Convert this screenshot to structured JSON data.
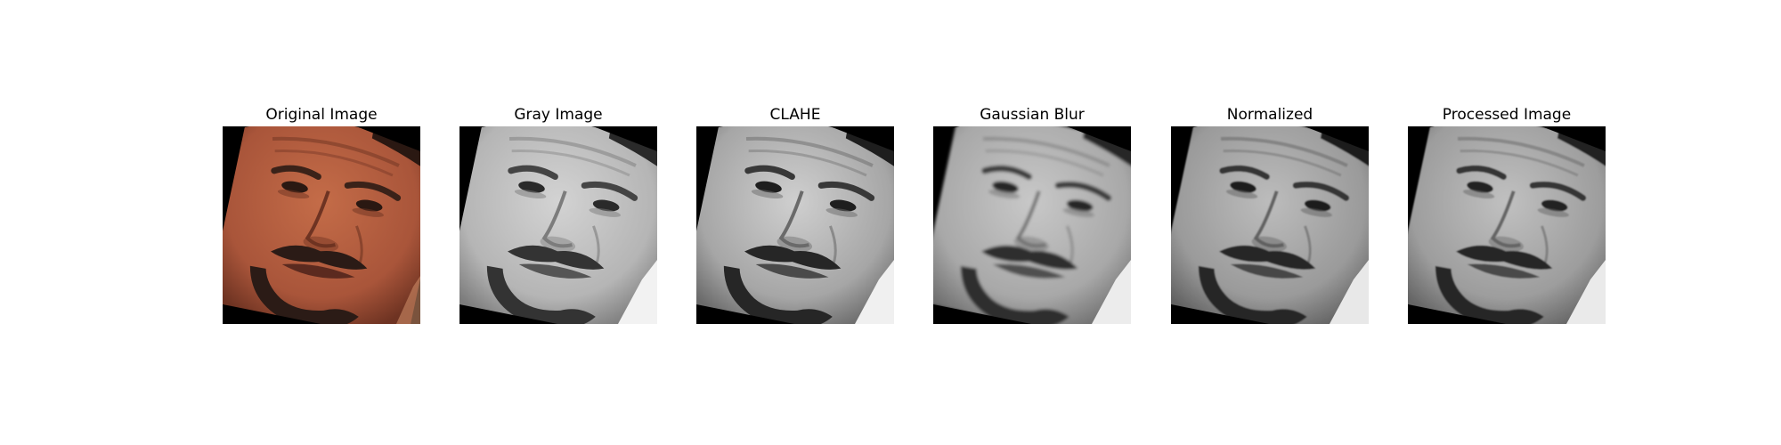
{
  "panels": [
    {
      "title": "Original Image",
      "mode": "color",
      "face_icon": "face-photo"
    },
    {
      "title": "Gray Image",
      "mode": "gray",
      "face_icon": "face-photo"
    },
    {
      "title": "CLAHE",
      "mode": "clahe",
      "face_icon": "face-photo"
    },
    {
      "title": "Gaussian Blur",
      "mode": "blur",
      "face_icon": "face-photo"
    },
    {
      "title": "Normalized",
      "mode": "normalized",
      "face_icon": "face-photo"
    },
    {
      "title": "Processed Image",
      "mode": "processed",
      "face_icon": "face-photo"
    }
  ]
}
